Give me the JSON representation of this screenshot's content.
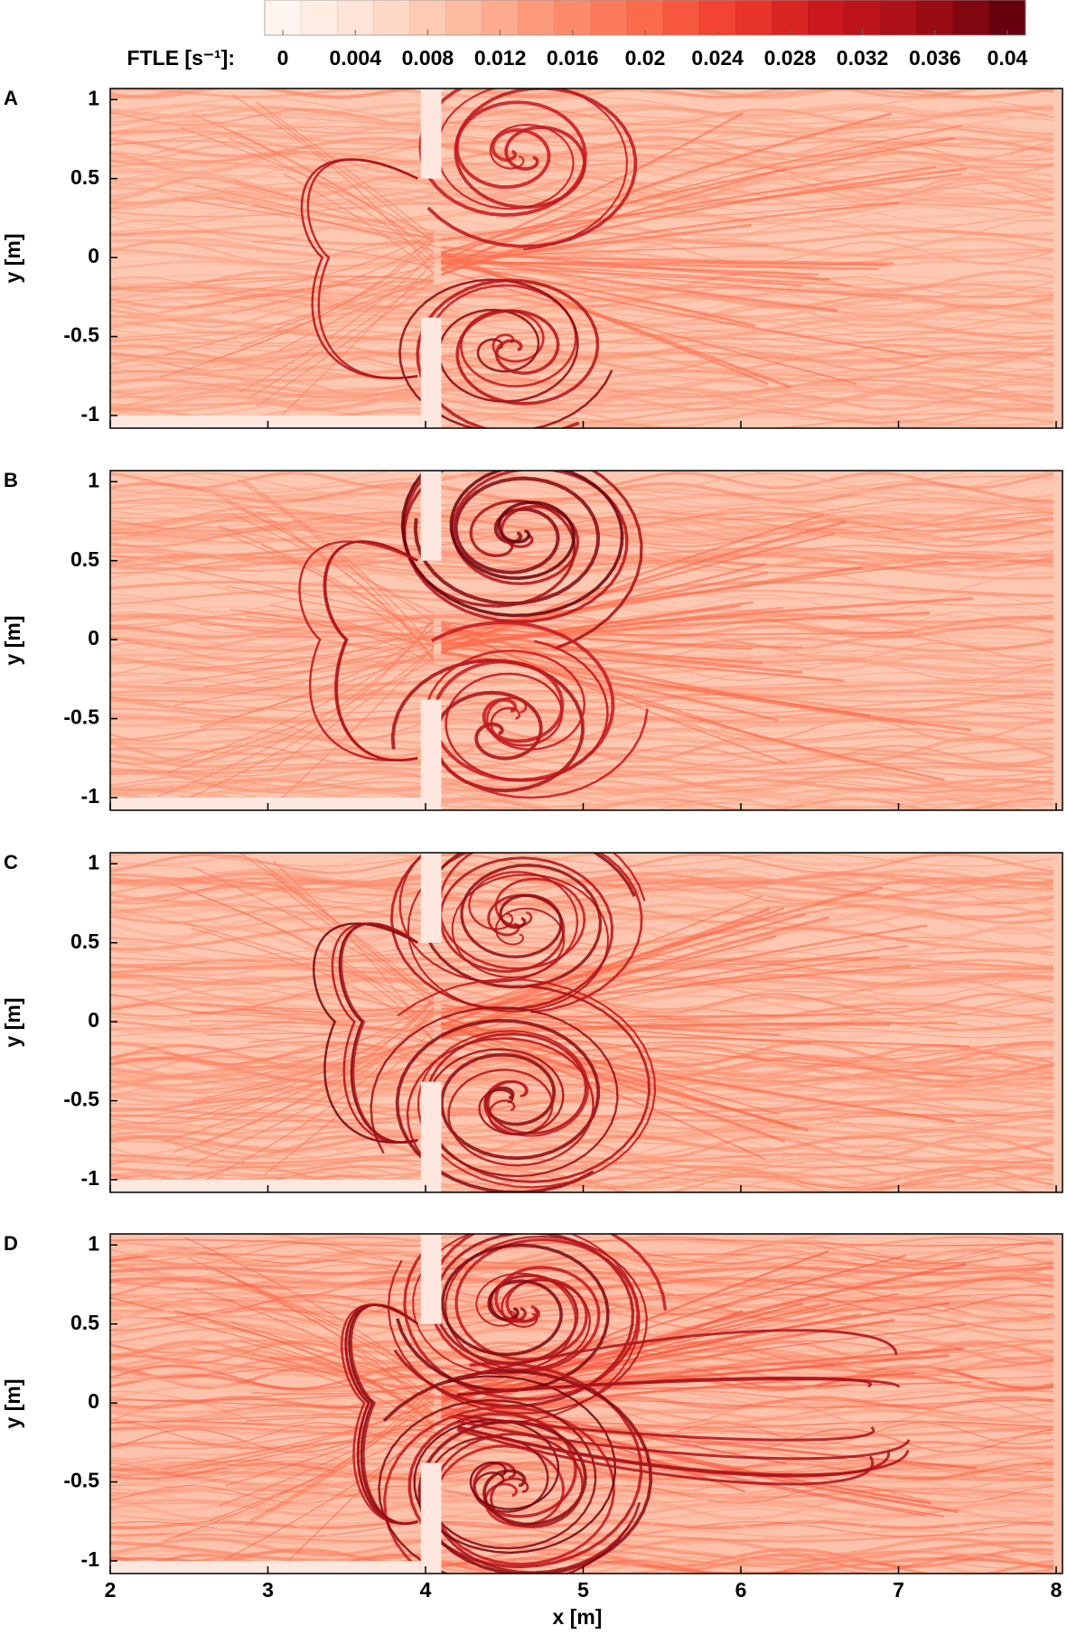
{
  "colorbar": {
    "label": "FTLE [s⁻¹]:",
    "lim": [
      -0.001,
      0.041
    ],
    "ticks": [
      0,
      0.004,
      0.008,
      0.012,
      0.016,
      0.02,
      0.024,
      0.028,
      0.032,
      0.036,
      0.04
    ]
  },
  "chart_data": [
    {
      "type": "heatmap",
      "label": "A",
      "ylabel": "y [m]",
      "xlim": [
        2,
        8.04
      ],
      "ylim": [
        -1.08,
        1.07
      ],
      "xticks": [
        2,
        3,
        4,
        5,
        6,
        7,
        8
      ],
      "yticks": [
        -1,
        -0.5,
        0,
        0.5,
        1
      ]
    },
    {
      "type": "heatmap",
      "label": "B",
      "ylabel": "y [m]",
      "xlim": [
        2,
        8.04
      ],
      "ylim": [
        -1.08,
        1.07
      ],
      "xticks": [
        2,
        3,
        4,
        5,
        6,
        7,
        8
      ],
      "yticks": [
        -1,
        -0.5,
        0,
        0.5,
        1
      ]
    },
    {
      "type": "heatmap",
      "label": "C",
      "ylabel": "y [m]",
      "xlim": [
        2,
        8.04
      ],
      "ylim": [
        -1.08,
        1.07
      ],
      "xticks": [
        2,
        3,
        4,
        5,
        6,
        7,
        8
      ],
      "yticks": [
        -1,
        -0.5,
        0,
        0.5,
        1
      ]
    },
    {
      "type": "heatmap",
      "label": "D",
      "ylabel": "y [m]",
      "xlabel": "x [m]",
      "xticklabels": true,
      "xlim": [
        2,
        8.04
      ],
      "ylim": [
        -1.08,
        1.07
      ],
      "xticks": [
        2,
        3,
        4,
        5,
        6,
        7,
        8
      ],
      "yticks": [
        -1,
        -0.5,
        0,
        0.5,
        1
      ]
    }
  ]
}
